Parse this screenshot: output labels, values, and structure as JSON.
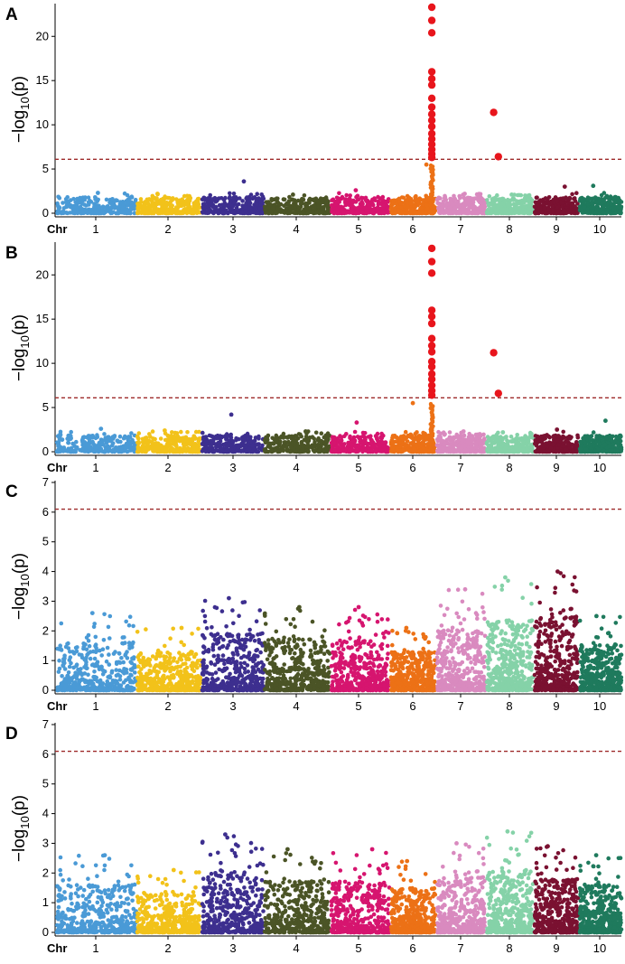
{
  "chart_data": [
    {
      "panel": "A",
      "type": "scatter",
      "subtype": "manhattan",
      "ylabel_prefix": "−log",
      "ylabel_sub": "10",
      "ylabel_suffix": "(p)",
      "xlabel": "Chr",
      "chromosomes": [
        "1",
        "2",
        "3",
        "4",
        "5",
        "6",
        "7",
        "8",
        "9",
        "10"
      ],
      "ylim": [
        0,
        23.5
      ],
      "yticks": [
        "0",
        "5",
        "10",
        "15",
        "20"
      ],
      "ytick_values": [
        0,
        5,
        10,
        15,
        20
      ],
      "threshold": 6.1,
      "background_max": [
        2.3,
        2.2,
        3.6,
        2.1,
        2.6,
        5.5,
        2.2,
        2.1,
        3.0,
        3.1
      ],
      "significant": [
        {
          "chr": 6,
          "pos": 0.92,
          "y": 23.3
        },
        {
          "chr": 6,
          "pos": 0.92,
          "y": 21.8
        },
        {
          "chr": 6,
          "pos": 0.92,
          "y": 20.4
        },
        {
          "chr": 6,
          "pos": 0.92,
          "y": 16.0
        },
        {
          "chr": 6,
          "pos": 0.92,
          "y": 15.2
        },
        {
          "chr": 6,
          "pos": 0.92,
          "y": 14.5
        },
        {
          "chr": 6,
          "pos": 0.92,
          "y": 13.0
        },
        {
          "chr": 6,
          "pos": 0.92,
          "y": 12.0
        },
        {
          "chr": 6,
          "pos": 0.92,
          "y": 11.2
        },
        {
          "chr": 6,
          "pos": 0.92,
          "y": 10.5
        },
        {
          "chr": 6,
          "pos": 0.92,
          "y": 9.8
        },
        {
          "chr": 6,
          "pos": 0.92,
          "y": 9.0
        },
        {
          "chr": 6,
          "pos": 0.92,
          "y": 8.4
        },
        {
          "chr": 6,
          "pos": 0.92,
          "y": 7.8
        },
        {
          "chr": 6,
          "pos": 0.92,
          "y": 7.2
        },
        {
          "chr": 6,
          "pos": 0.92,
          "y": 6.7
        },
        {
          "chr": 6,
          "pos": 0.92,
          "y": 6.3
        },
        {
          "chr": 8,
          "pos": 0.15,
          "y": 11.4
        },
        {
          "chr": 8,
          "pos": 0.25,
          "y": 6.4
        }
      ]
    },
    {
      "panel": "B",
      "type": "scatter",
      "subtype": "manhattan",
      "ylabel_prefix": "−log",
      "ylabel_sub": "10",
      "ylabel_suffix": "(p)",
      "xlabel": "Chr",
      "chromosomes": [
        "1",
        "2",
        "3",
        "4",
        "5",
        "6",
        "7",
        "8",
        "9",
        "10"
      ],
      "ylim": [
        0,
        23.5
      ],
      "yticks": [
        "0",
        "5",
        "10",
        "15",
        "20"
      ],
      "ytick_values": [
        0,
        5,
        10,
        15,
        20
      ],
      "threshold": 6.1,
      "background_max": [
        2.6,
        2.4,
        4.2,
        2.3,
        3.3,
        5.5,
        2.3,
        2.2,
        2.5,
        3.5
      ],
      "significant": [
        {
          "chr": 6,
          "pos": 0.92,
          "y": 23.0
        },
        {
          "chr": 6,
          "pos": 0.92,
          "y": 21.5
        },
        {
          "chr": 6,
          "pos": 0.92,
          "y": 20.2
        },
        {
          "chr": 6,
          "pos": 0.92,
          "y": 16.0
        },
        {
          "chr": 6,
          "pos": 0.92,
          "y": 15.3
        },
        {
          "chr": 6,
          "pos": 0.92,
          "y": 14.5
        },
        {
          "chr": 6,
          "pos": 0.92,
          "y": 12.8
        },
        {
          "chr": 6,
          "pos": 0.92,
          "y": 12.0
        },
        {
          "chr": 6,
          "pos": 0.92,
          "y": 11.3
        },
        {
          "chr": 6,
          "pos": 0.92,
          "y": 10.2
        },
        {
          "chr": 6,
          "pos": 0.92,
          "y": 9.6
        },
        {
          "chr": 6,
          "pos": 0.92,
          "y": 8.8
        },
        {
          "chr": 6,
          "pos": 0.92,
          "y": 8.2
        },
        {
          "chr": 6,
          "pos": 0.92,
          "y": 7.5
        },
        {
          "chr": 6,
          "pos": 0.92,
          "y": 6.9
        },
        {
          "chr": 6,
          "pos": 0.92,
          "y": 6.4
        },
        {
          "chr": 8,
          "pos": 0.15,
          "y": 11.2
        },
        {
          "chr": 8,
          "pos": 0.25,
          "y": 6.6
        }
      ]
    },
    {
      "panel": "C",
      "type": "scatter",
      "subtype": "manhattan",
      "ylabel_prefix": "−log",
      "ylabel_sub": "10",
      "ylabel_suffix": "(p)",
      "xlabel": "Chr",
      "chromosomes": [
        "1",
        "2",
        "3",
        "4",
        "5",
        "6",
        "7",
        "8",
        "9",
        "10"
      ],
      "ylim": [
        0,
        7
      ],
      "yticks": [
        "0",
        "1",
        "2",
        "3",
        "4",
        "5",
        "6",
        "7"
      ],
      "ytick_values": [
        0,
        1,
        2,
        3,
        4,
        5,
        6,
        7
      ],
      "threshold": 6.1,
      "background_max": [
        2.6,
        2.1,
        3.1,
        2.8,
        2.8,
        2.1,
        3.4,
        3.8,
        4.0,
        2.5
      ],
      "significant": []
    },
    {
      "panel": "D",
      "type": "scatter",
      "subtype": "manhattan",
      "ylabel_prefix": "−log",
      "ylabel_sub": "10",
      "ylabel_suffix": "(p)",
      "xlabel": "Chr",
      "chromosomes": [
        "1",
        "2",
        "3",
        "4",
        "5",
        "6",
        "7",
        "8",
        "9",
        "10"
      ],
      "ylim": [
        0,
        7
      ],
      "yticks": [
        "0",
        "1",
        "2",
        "3",
        "4",
        "5",
        "6",
        "7"
      ],
      "ytick_values": [
        0,
        1,
        2,
        3,
        4,
        5,
        6,
        7
      ],
      "threshold": 6.1,
      "background_max": [
        2.6,
        2.1,
        3.3,
        2.8,
        2.8,
        2.4,
        3.0,
        3.4,
        2.9,
        2.6
      ],
      "significant": []
    }
  ],
  "colors": {
    "chromosomes": [
      "#4a9ad6",
      "#f2c21a",
      "#3d2f8f",
      "#4b5426",
      "#d6156f",
      "#ec7116",
      "#d98abf",
      "#85d2a8",
      "#7a1131",
      "#1f7a5d"
    ],
    "significant": "#e8151c",
    "threshold": "#9e2a2a"
  }
}
